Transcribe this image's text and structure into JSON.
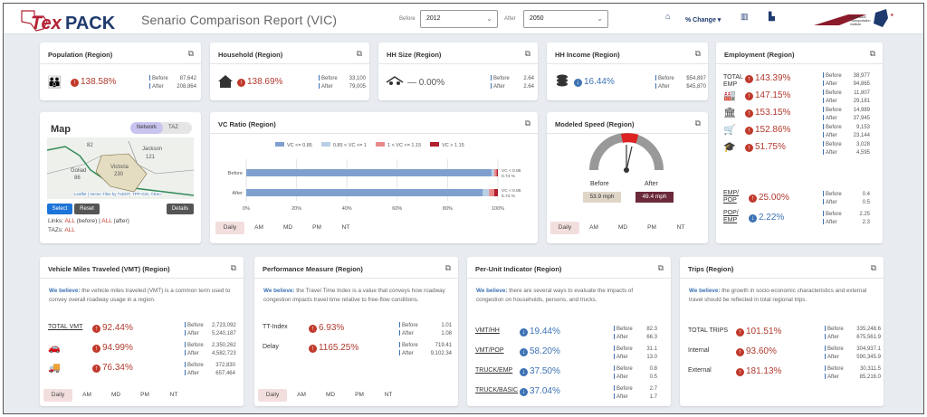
{
  "header": {
    "logo_tex": "Tex",
    "logo_pack": "PACK",
    "title": "Senario Comparison Report (VIC)",
    "before_label": "Before",
    "before_value": "2012",
    "after_label": "After",
    "after_value": "2050",
    "pct_change": "% Change",
    "icons": [
      "home-icon",
      "bar-chart-icon",
      "building-icon"
    ],
    "tti_logo": "Texas A&M Transportation Institute"
  },
  "population": {
    "title": "Population (Region)",
    "pct": "138.58%",
    "before": "87,642",
    "after": "208,864",
    "before_label": "Before",
    "after_label": "After"
  },
  "household": {
    "title": "Household (Region)",
    "pct": "138.69%",
    "before": "33,100",
    "after": "79,005",
    "before_label": "Before",
    "after_label": "After"
  },
  "hhsize": {
    "title": "HH Size (Region)",
    "pct": "0.00%",
    "before": "2.64",
    "after": "2.64",
    "before_label": "Before",
    "after_label": "After"
  },
  "hhincome": {
    "title": "HH Income (Region)",
    "pct": "16.44%",
    "before": "$54,897",
    "after": "$45,870",
    "before_label": "Before",
    "after_label": "After"
  },
  "employment": {
    "title": "Employment (Region)",
    "rows": [
      {
        "label": "TOTAL EMP",
        "pct": "143.39%",
        "before": "38,977",
        "after": "94,865",
        "dir": "up"
      },
      {
        "label": "",
        "pct": "147.15%",
        "before": "11,807",
        "after": "29,181",
        "dir": "up",
        "icon": "factory-icon"
      },
      {
        "label": "",
        "pct": "153.15%",
        "before": "14,989",
        "after": "37,945",
        "dir": "up",
        "icon": "bank-icon"
      },
      {
        "label": "",
        "pct": "152.86%",
        "before": "9,153",
        "after": "23,144",
        "dir": "up",
        "icon": "cart-icon"
      },
      {
        "label": "",
        "pct": "51.75%",
        "before": "3,028",
        "after": "4,595",
        "dir": "up",
        "icon": "graduation-icon"
      },
      {
        "label": "EMP/ POP",
        "pct": "25.00%",
        "before": "0.4",
        "after": "0.5",
        "dir": "up"
      },
      {
        "label": "POP/ EMP",
        "pct": "2.22%",
        "before": "2.25",
        "after": "2.3",
        "dir": "dn"
      }
    ],
    "before_label": "Before",
    "after_label": "After"
  },
  "map": {
    "title": "Map",
    "toggle_network": "Network",
    "toggle_taz": "TAZ",
    "places": [
      "82",
      "Jackson",
      "121",
      "Goliad",
      "86",
      "Victoria",
      "230"
    ],
    "attribution": "Leaflet | Vector Tiles by TxDOT, TPP-GIS, ©Esri",
    "select": "Select",
    "reset": "Reset",
    "details": "Details",
    "links_label": "Links:",
    "links_before": "ALL",
    "links_before_suffix": "(before) |",
    "links_after": "ALL",
    "links_after_suffix": "(after)",
    "tazs_label": "TAZs:",
    "tazs_value": "ALL"
  },
  "vcratio": {
    "title": "VC Ratio (Region)",
    "legend": [
      "VC <= 0.85",
      "0.85 < VC <= 1",
      "1 < VC <= 1.15",
      "VC > 1.15"
    ],
    "legend_colors": [
      "#7fa0cf",
      "#b9cfe6",
      "#e88a8a",
      "#b0202f"
    ],
    "rows": [
      {
        "label": "Before",
        "values": [
          97.5,
          1,
          1,
          0.5
        ],
        "note1": "VC < 0.85",
        "note2": "0.74 %"
      },
      {
        "label": "After",
        "values": [
          94,
          2.5,
          2,
          1.5
        ],
        "note1": "VC < 0.85",
        "note2": "5.74 %"
      }
    ],
    "ticks": [
      "0%",
      "20%",
      "40%",
      "60%",
      "80%",
      "100%"
    ],
    "tabs": [
      "Daily",
      "AM",
      "MD",
      "PM",
      "NT"
    ]
  },
  "speed": {
    "title": "Modeled Speed (Region)",
    "before_label": "Before",
    "after_label": "After",
    "before": "53.9 mph",
    "after": "49.4 mph",
    "tabs": [
      "Daily",
      "AM",
      "MD",
      "PM",
      "NT"
    ]
  },
  "vmt": {
    "title": "Vehicle Miles Traveled (VMT) (Region)",
    "believe": "We believe:",
    "desc": "the vehicle miles traveled (VMT) is a common term used to convey overall roadway usage in a region.",
    "rows": [
      {
        "label": "TOTAL VMT",
        "pct": "92.44%",
        "before": "2,723,092",
        "after": "5,240,187"
      },
      {
        "label": "",
        "icon": "car-icon",
        "pct": "94.99%",
        "before": "2,350,262",
        "after": "4,582,723"
      },
      {
        "label": "",
        "icon": "truck-icon",
        "pct": "76.34%",
        "before": "372,830",
        "after": "657,464"
      }
    ],
    "tabs": [
      "Daily",
      "AM",
      "MD",
      "PM",
      "NT"
    ],
    "before_label": "Before",
    "after_label": "After"
  },
  "perf": {
    "title": "Performance Measure (Region)",
    "believe": "We believe:",
    "desc": "the Travel Time Index is a value that conveys how roadway congestion impacts travel time relative to free-flow conditions.",
    "rows": [
      {
        "label": "TT-Index",
        "pct": "6.93%",
        "before": "1.01",
        "after": "1.08"
      },
      {
        "label": "Delay",
        "pct": "1165.25%",
        "before": "719.41",
        "after": "9,102.34"
      }
    ],
    "tabs": [
      "Daily",
      "AM",
      "MD",
      "PM",
      "NT"
    ],
    "before_label": "Before",
    "after_label": "After"
  },
  "perunit": {
    "title": "Per-Unit Indicator (Region)",
    "believe": "We believe:",
    "desc": "there are several ways to evaluate the impacts of congestion on households, persons, and trucks.",
    "rows": [
      {
        "label": "VMT/HH",
        "pct": "19.44%",
        "before": "82.3",
        "after": "66.3"
      },
      {
        "label": "VMT/POP",
        "pct": "58.20%",
        "before": "31.1",
        "after": "13.0"
      },
      {
        "label": "TRUCK/EMP",
        "pct": "37.50%",
        "before": "0.8",
        "after": "0.5"
      },
      {
        "label": "TRUCK/BASIC",
        "pct": "37.04%",
        "before": "2.7",
        "after": "1.7"
      }
    ],
    "before_label": "Before",
    "after_label": "After"
  },
  "trips": {
    "title": "Trips (Region)",
    "believe": "We believe:",
    "desc": "the growth in socio-economic characteristics and external travel should be reflected in total regional trips.",
    "rows": [
      {
        "label": "TOTAL TRIPS",
        "pct": "101.51%",
        "before": "335,248.6",
        "after": "675,561.9"
      },
      {
        "label": "Internal",
        "pct": "93.60%",
        "before": "304,937.1",
        "after": "590,345.9"
      },
      {
        "label": "External",
        "pct": "181.13%",
        "before": "30,311.5",
        "after": "85,216.0"
      }
    ],
    "before_label": "Before",
    "after_label": "After"
  }
}
